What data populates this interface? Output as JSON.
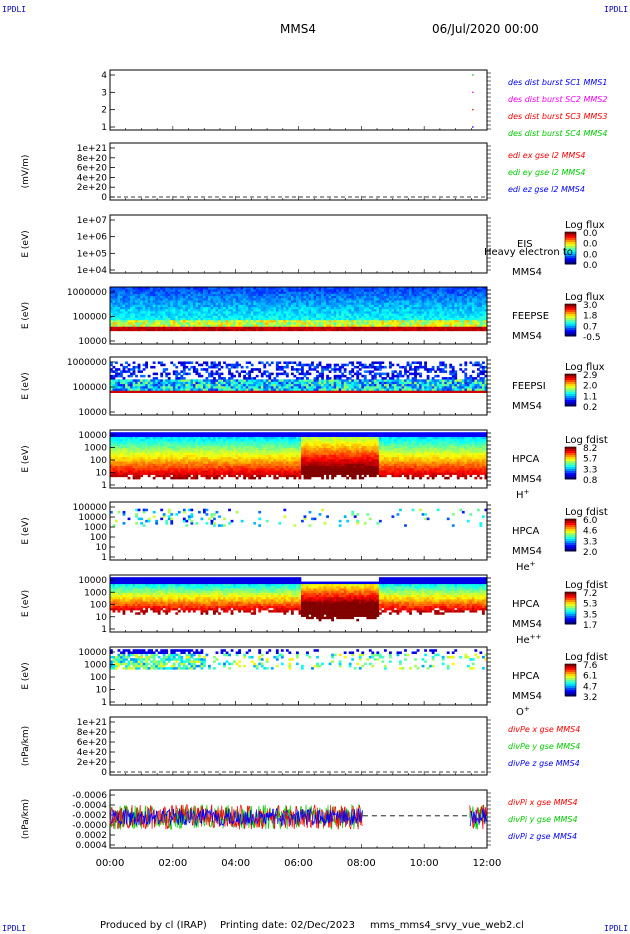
{
  "header": {
    "corner_label": "IPDLI",
    "spacecraft": "MMS4",
    "datetime": "06/Jul/2020 00:00"
  },
  "footer": {
    "produced_by": "Produced by cl (IRAP)",
    "printing_date": "Printing date: 02/Dec/2023",
    "filename": "mms_mms4_srvy_vue_web2.cl"
  },
  "colors": {
    "mms1": "#0000ff",
    "mms2": "#ff00ff",
    "mms3": "#ff0000",
    "mms4": "#00cc00",
    "x_comp": "#ff0000",
    "y_comp": "#00cc00",
    "z_comp": "#0000ff",
    "spectrogram_cmap": "jet"
  },
  "chart_data": [
    {
      "type": "scatter",
      "id": "des_burst",
      "ylabel": "",
      "yticks": [
        "1",
        "2",
        "3",
        "4"
      ],
      "ylim": [
        0.5,
        4.5
      ],
      "legend": [
        {
          "label": "des dist burst SC1 MMS1",
          "color": "#0000ff"
        },
        {
          "label": "des dist burst SC2 MMS2",
          "color": "#ff00ff"
        },
        {
          "label": "des dist burst SC3 MMS3",
          "color": "#ff0000"
        },
        {
          "label": "des dist burst SC4 MMS4",
          "color": "#00cc00"
        }
      ],
      "series": [
        {
          "name": "MMS1",
          "points": [
            [
              11.55,
              1
            ]
          ]
        },
        {
          "name": "MMS2",
          "points": [
            [
              11.55,
              3
            ]
          ]
        },
        {
          "name": "MMS3",
          "points": [
            [
              11.55,
              2
            ]
          ]
        },
        {
          "name": "MMS4",
          "points": [
            [
              11.55,
              4
            ]
          ]
        }
      ]
    },
    {
      "type": "line",
      "id": "edi",
      "ylabel": "(mV/m)",
      "yticks": [
        "0",
        "2e+20",
        "4e+20",
        "6e+20",
        "8e+20",
        "1e+21"
      ],
      "ylim": [
        0,
        1e+21
      ],
      "legend": [
        {
          "label": "edi ex gse l2 MMS4",
          "color": "#ff0000"
        },
        {
          "label": "edi ey gse l2 MMS4",
          "color": "#00cc00"
        },
        {
          "label": "edi ez gse l2 MMS4",
          "color": "#0000ff"
        }
      ],
      "zero_line": true
    },
    {
      "type": "heatmap",
      "id": "eis",
      "ylabel": "E (eV)",
      "yticks": [
        "1e+04",
        "1e+05",
        "1e+06",
        "1e+07"
      ],
      "ylim": [
        10000.0,
        10000000.0
      ],
      "labels": [
        "EIS",
        "MMS4"
      ],
      "overlay_text": "Heavy electron to",
      "colorbar_title": "Log flux",
      "colorbar_ticks": [
        "0.0",
        "0.0",
        "0.0",
        "0.0"
      ],
      "empty": true
    },
    {
      "type": "heatmap",
      "id": "feeps_e",
      "ylabel": "E (eV)",
      "yticks": [
        "10000",
        "100000",
        "1000000"
      ],
      "ylim": [
        10000.0,
        1000000.0
      ],
      "labels": [
        "FEEPSE",
        "MMS4"
      ],
      "colorbar_title": "Log flux",
      "colorbar_ticks": [
        "3.0",
        "1.8",
        "0.7",
        "-0.5"
      ],
      "x_range": [
        0,
        12
      ],
      "band_log_range": [
        4.45,
        5.95
      ]
    },
    {
      "type": "heatmap",
      "id": "feeps_i",
      "ylabel": "E (eV)",
      "yticks": [
        "10000",
        "100000",
        "1000000"
      ],
      "ylim": [
        10000.0,
        1000000.0
      ],
      "labels": [
        "FEEPSI",
        "MMS4"
      ],
      "colorbar_title": "Log flux",
      "colorbar_ticks": [
        "2.9",
        "2.0",
        "1.1",
        "0.2"
      ],
      "x_range": [
        0,
        12
      ],
      "band_log_range": [
        4.75,
        5.35
      ]
    },
    {
      "type": "heatmap",
      "id": "hpca_h",
      "ylabel": "E (eV)",
      "yticks": [
        "1",
        "10",
        "100",
        "1000",
        "10000"
      ],
      "ylim": [
        1,
        30000
      ],
      "labels": [
        "HPCA",
        "MMS4",
        "H+"
      ],
      "colorbar_title": "Log fdist",
      "colorbar_ticks": [
        "8.2",
        "5.7",
        "3.3",
        "0.8"
      ],
      "x_range": [
        0,
        12
      ]
    },
    {
      "type": "heatmap",
      "id": "hpca_he1",
      "ylabel": "E (eV)",
      "yticks": [
        "1",
        "10",
        "100",
        "1000",
        "10000",
        "100000"
      ],
      "ylim": [
        1,
        100000
      ],
      "labels": [
        "HPCA",
        "MMS4",
        "He+"
      ],
      "colorbar_title": "Log fdist",
      "colorbar_ticks": [
        "6.0",
        "4.6",
        "3.3",
        "2.0"
      ],
      "x_range": [
        0,
        12
      ]
    },
    {
      "type": "heatmap",
      "id": "hpca_he2",
      "ylabel": "E (eV)",
      "yticks": [
        "1",
        "10",
        "100",
        "1000",
        "10000"
      ],
      "ylim": [
        1,
        30000
      ],
      "labels": [
        "HPCA",
        "MMS4",
        "He++"
      ],
      "colorbar_title": "Log fdist",
      "colorbar_ticks": [
        "7.2",
        "5.3",
        "3.5",
        "1.7"
      ],
      "x_range": [
        0,
        12
      ]
    },
    {
      "type": "heatmap",
      "id": "hpca_o",
      "ylabel": "E (eV)",
      "yticks": [
        "1",
        "10",
        "100",
        "1000",
        "10000"
      ],
      "ylim": [
        1,
        30000
      ],
      "labels": [
        "HPCA",
        "MMS4",
        "O+"
      ],
      "colorbar_title": "Log fdist",
      "colorbar_ticks": [
        "7.6",
        "6.1",
        "4.7",
        "3.2"
      ],
      "x_range": [
        0,
        12
      ]
    },
    {
      "type": "line",
      "id": "divpe",
      "ylabel": "(nPa/km)",
      "yticks": [
        "0",
        "2e+20",
        "4e+20",
        "6e+20",
        "8e+20",
        "1e+21"
      ],
      "ylim": [
        0,
        1e+21
      ],
      "legend": [
        {
          "label": "divPe x gse MMS4",
          "color": "#ff0000"
        },
        {
          "label": "divPe y gse MMS4",
          "color": "#00cc00"
        },
        {
          "label": "divPe z gse MMS4",
          "color": "#0000ff"
        }
      ],
      "zero_line": true
    },
    {
      "type": "line",
      "id": "divpi",
      "ylabel": "(nPa/km)",
      "yticks": [
        "0.0004",
        "0.0002",
        "-0.0000",
        "-0.0002",
        "-0.0004",
        "-0.0006"
      ],
      "ylim": [
        -0.0007,
        0.0005
      ],
      "legend": [
        {
          "label": "divPi x gse MMS4",
          "color": "#ff0000"
        },
        {
          "label": "divPi y gse MMS4",
          "color": "#00cc00"
        },
        {
          "label": "divPi z gse MMS4",
          "color": "#0000ff"
        }
      ],
      "segments": [
        [
          0,
          8.05
        ],
        [
          11.45,
          12
        ]
      ],
      "dashed_gap": [
        8.05,
        11.45
      ]
    }
  ],
  "xaxis": {
    "ticks": [
      "00:00",
      "02:00",
      "04:00",
      "06:00",
      "08:00",
      "10:00",
      "12:00"
    ],
    "range_hours": [
      0,
      12
    ]
  }
}
